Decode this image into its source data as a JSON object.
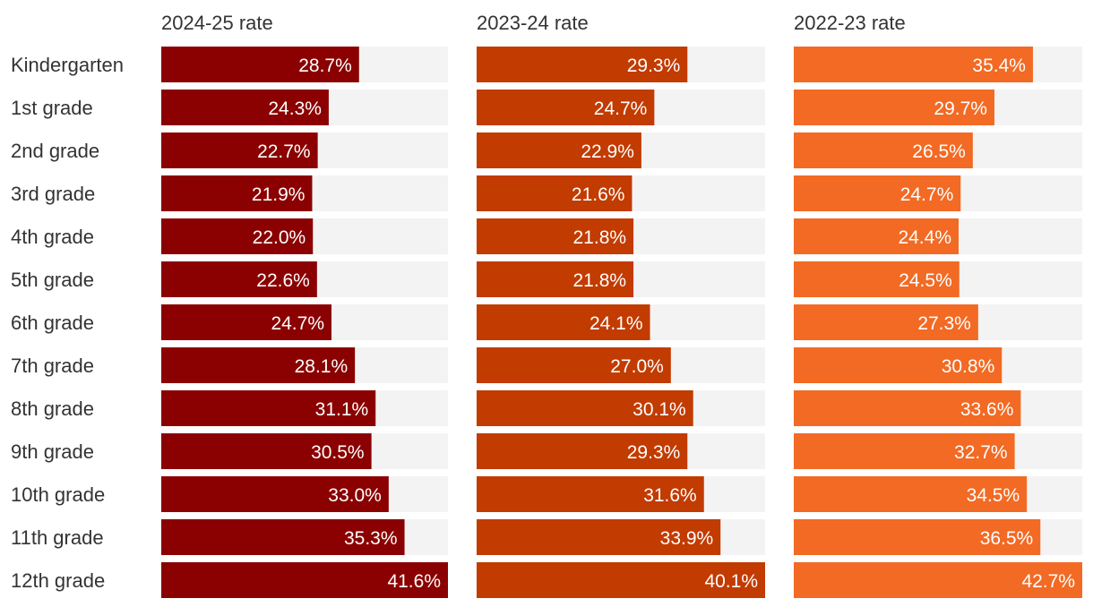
{
  "chart_data": {
    "type": "bar",
    "orientation": "horizontal",
    "categories": [
      "Kindergarten",
      "1st grade",
      "2nd grade",
      "3rd grade",
      "4th grade",
      "5th grade",
      "6th grade",
      "7th grade",
      "8th grade",
      "9th grade",
      "10th grade",
      "11th grade",
      "12th grade"
    ],
    "series": [
      {
        "name": "2024-25 rate",
        "color": "#8b0000",
        "values": [
          28.7,
          24.3,
          22.7,
          21.9,
          22.0,
          22.6,
          24.7,
          28.1,
          31.1,
          30.5,
          33.0,
          35.3,
          41.6
        ],
        "labels": [
          "28.7%",
          "24.3%",
          "22.7%",
          "21.9%",
          "22.0%",
          "22.6%",
          "24.7%",
          "28.1%",
          "31.1%",
          "30.5%",
          "33.0%",
          "35.3%",
          "41.6%"
        ],
        "xlim": [
          0,
          41.6
        ]
      },
      {
        "name": "2023-24 rate",
        "color": "#c23b00",
        "values": [
          29.3,
          24.7,
          22.9,
          21.6,
          21.8,
          21.8,
          24.1,
          27.0,
          30.1,
          29.3,
          31.6,
          33.9,
          40.1
        ],
        "labels": [
          "29.3%",
          "24.7%",
          "22.9%",
          "21.6%",
          "21.8%",
          "21.8%",
          "24.1%",
          "27.0%",
          "30.1%",
          "29.3%",
          "31.6%",
          "33.9%",
          "40.1%"
        ],
        "xlim": [
          0,
          40.1
        ]
      },
      {
        "name": "2022-23 rate",
        "color": "#f26a24",
        "values": [
          35.4,
          29.7,
          26.5,
          24.7,
          24.4,
          24.5,
          27.3,
          30.8,
          33.6,
          32.7,
          34.5,
          36.5,
          42.7
        ],
        "labels": [
          "35.4%",
          "29.7%",
          "26.5%",
          "24.7%",
          "24.4%",
          "24.5%",
          "27.3%",
          "30.8%",
          "33.6%",
          "32.7%",
          "34.5%",
          "36.5%",
          "42.7%"
        ],
        "xlim": [
          0,
          42.7
        ]
      }
    ],
    "track_color": "#f3f3f3",
    "grid": false,
    "legend": "none"
  }
}
